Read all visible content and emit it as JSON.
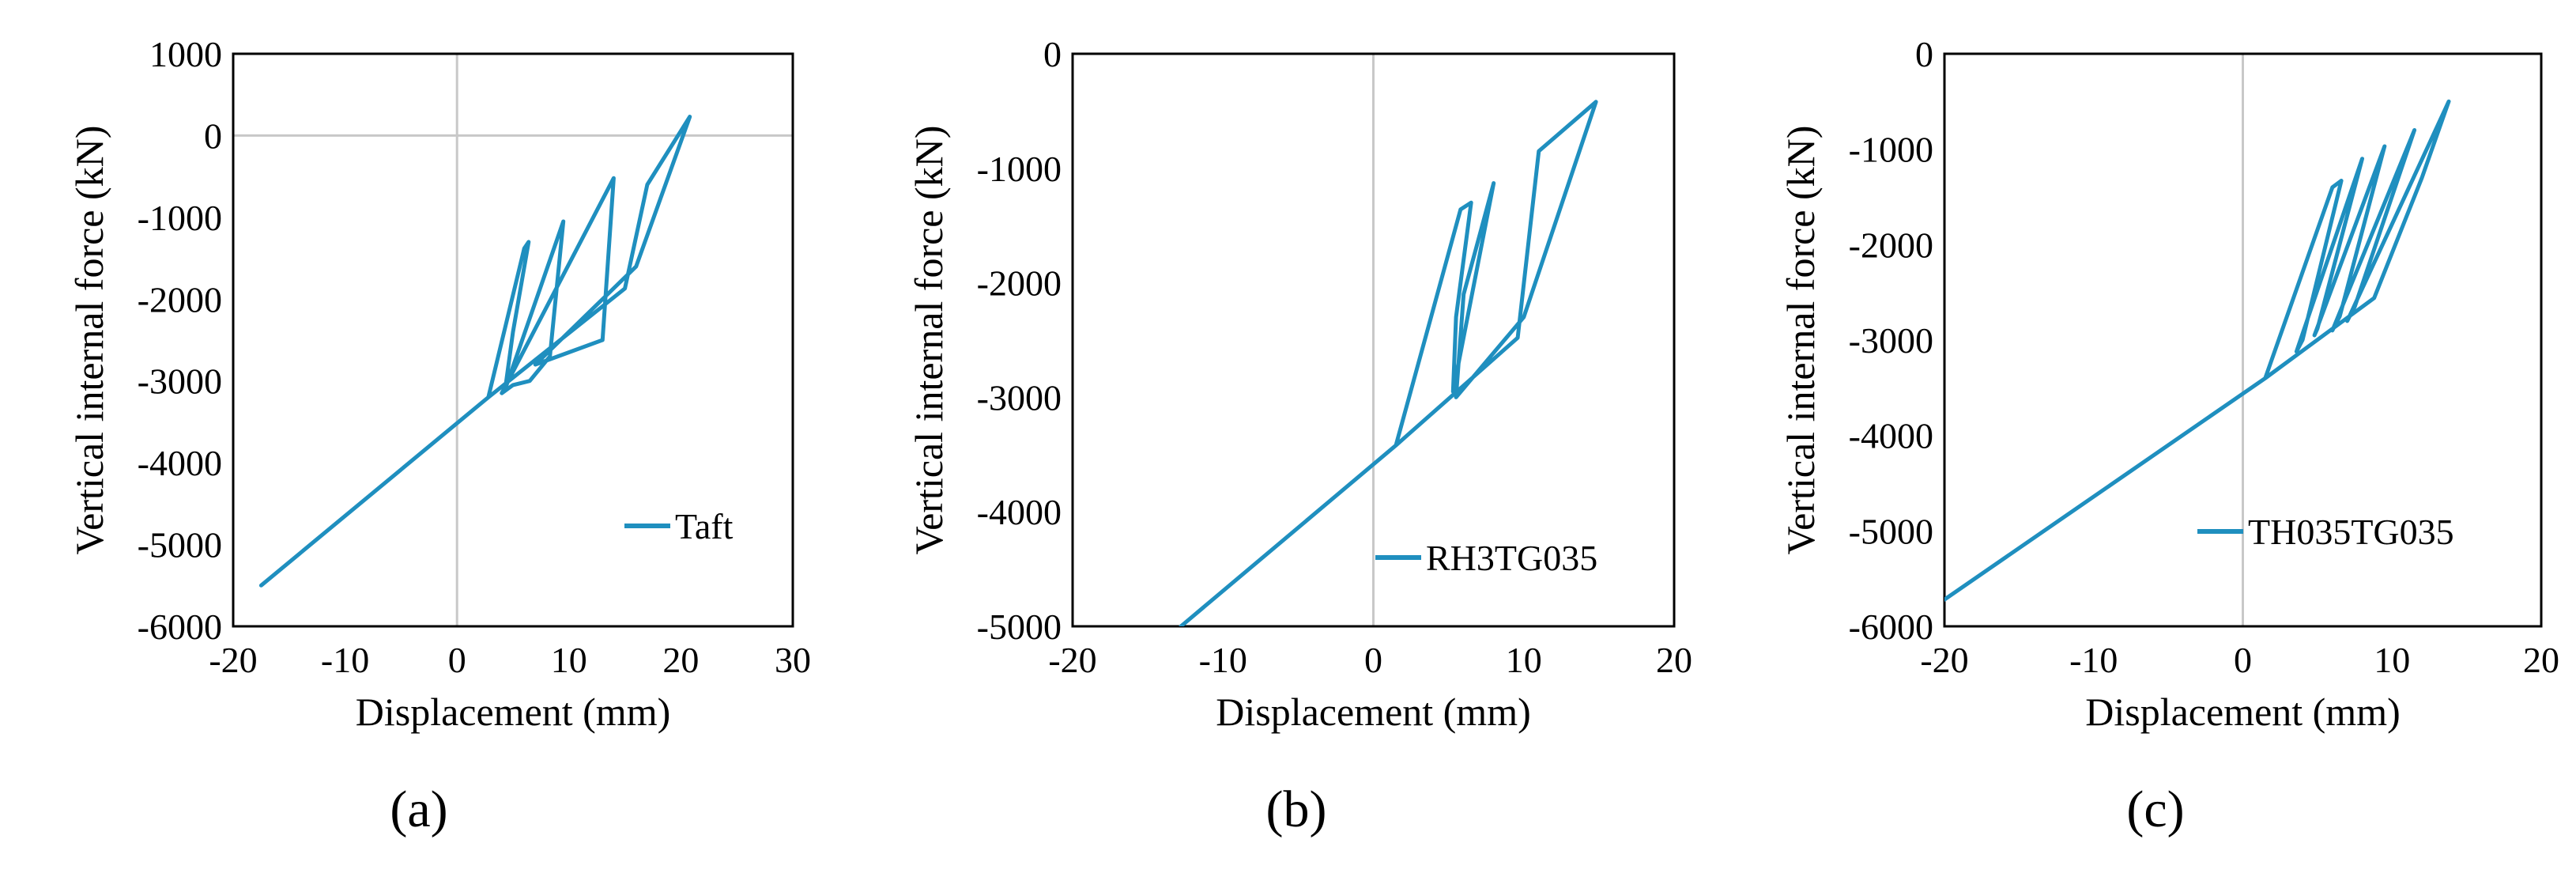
{
  "chart_data": [
    {
      "type": "line",
      "panel_label": "(a)",
      "xlabel": "Displacement (mm)",
      "ylabel": "Vertical internal force (kN)",
      "xlim": [
        -20,
        30
      ],
      "ylim": [
        -6000,
        1000
      ],
      "xticks": [
        -20,
        -10,
        0,
        10,
        20,
        30
      ],
      "yticks": [
        1000,
        0,
        -1000,
        -2000,
        -3000,
        -4000,
        -5000,
        -6000
      ],
      "grid": false,
      "legend_position": "right-middle",
      "color": "#1f8fbf",
      "series": [
        {
          "name": "Taft",
          "x": [
            -17.5,
            2.8,
            6,
            6.4,
            5,
            4.3,
            9.5,
            8.3,
            6.5,
            5,
            4,
            14,
            13,
            8,
            7,
            16,
            20.8,
            17,
            15,
            2.8
          ],
          "y": [
            -5500,
            -3200,
            -1380,
            -1300,
            -2400,
            -3100,
            -1050,
            -2700,
            -3000,
            -3050,
            -3150,
            -520,
            -2500,
            -2750,
            -2800,
            -1600,
            230,
            -600,
            -1870,
            -3200
          ]
        }
      ]
    },
    {
      "type": "line",
      "panel_label": "(b)",
      "xlabel": "Displacement (mm)",
      "ylabel": "Vertical internal force (kN)",
      "xlim": [
        -20,
        20
      ],
      "ylim": [
        -5000,
        0
      ],
      "xticks": [
        -20,
        -10,
        0,
        10,
        20
      ],
      "yticks": [
        0,
        -1000,
        -2000,
        -3000,
        -4000,
        -5000
      ],
      "grid": false,
      "legend_position": "bottom-right",
      "color": "#1f8fbf",
      "series": [
        {
          "name": "RH3TG035",
          "x": [
            -12.8,
            1.5,
            5.8,
            6.5,
            5.5,
            5.3,
            8,
            6,
            5.5,
            10,
            14.8,
            11,
            9.6,
            1.5
          ],
          "y": [
            -5000,
            -3420,
            -1360,
            -1300,
            -2300,
            -2950,
            -1130,
            -2100,
            -3000,
            -2300,
            -420,
            -850,
            -2480,
            -3420
          ]
        }
      ]
    },
    {
      "type": "line",
      "panel_label": "(c)",
      "xlabel": "Displacement (mm)",
      "ylabel": "Vertical internal force (kN)",
      "xlim": [
        -20,
        20
      ],
      "ylim": [
        -6000,
        0
      ],
      "xticks": [
        -20,
        -10,
        0,
        10,
        20
      ],
      "yticks": [
        0,
        -1000,
        -2000,
        -3000,
        -4000,
        -5000,
        -6000
      ],
      "grid": false,
      "legend_position": "bottom-right",
      "color": "#1f8fbf",
      "series": [
        {
          "name": "TH035TG035",
          "x": [
            -20,
            1.5,
            6,
            6.6,
            4,
            3.6,
            8,
            5,
            4.8,
            9.5,
            6.5,
            6,
            11.5,
            7.5,
            7,
            13.8,
            12,
            8.8,
            1.5
          ],
          "y": [
            -5720,
            -3400,
            -1400,
            -1330,
            -3000,
            -3120,
            -1100,
            -2880,
            -2950,
            -970,
            -2750,
            -2900,
            -800,
            -2650,
            -2800,
            -500,
            -1300,
            -2560,
            -3400
          ]
        }
      ]
    }
  ]
}
